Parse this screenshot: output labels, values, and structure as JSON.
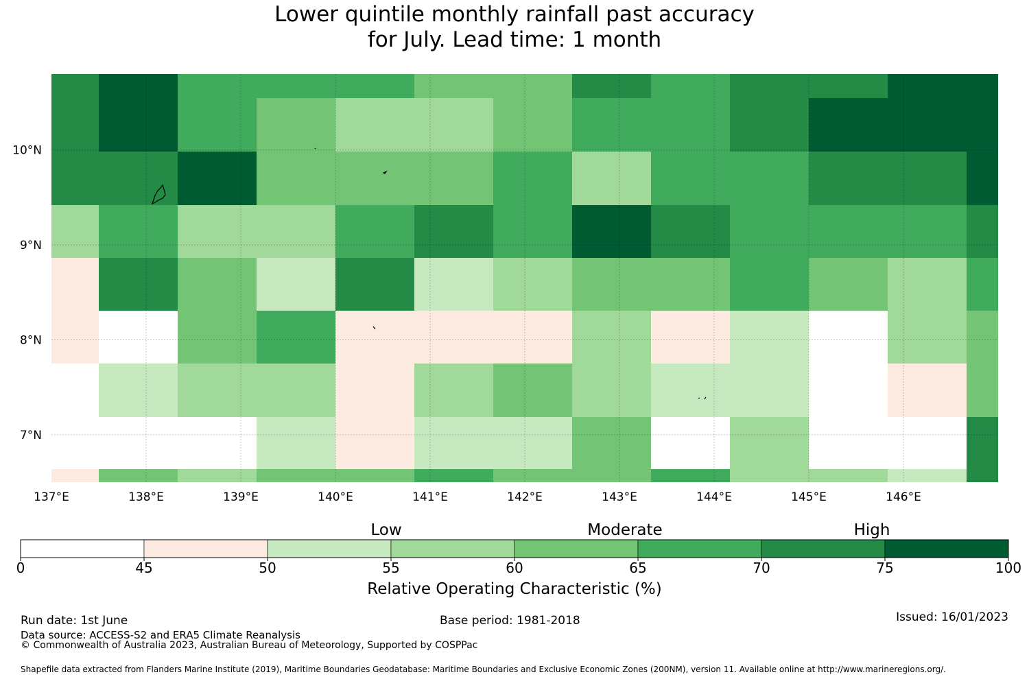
{
  "title": {
    "line1": "Lower quintile monthly rainfall past accuracy",
    "line2": "for July. Lead time: 1 month"
  },
  "map": {
    "lon_labels": [
      "137°E",
      "138°E",
      "139°E",
      "140°E",
      "141°E",
      "142°E",
      "143°E",
      "144°E",
      "145°E",
      "146°E"
    ],
    "lat_labels": [
      "10°N",
      "9°N",
      "8°N",
      "7°N"
    ],
    "lon_range": [
      137.0,
      147.0
    ],
    "lat_range": [
      6.5,
      10.8
    ],
    "cell_lon_edges": [
      137.0,
      137.5,
      138.33,
      139.17,
      140.0,
      140.83,
      141.67,
      142.5,
      143.33,
      144.17,
      145.0,
      145.83,
      146.67,
      147.0
    ],
    "cell_lat_edges": [
      10.8,
      10.55,
      9.98,
      9.42,
      8.86,
      8.31,
      7.75,
      7.19,
      6.64,
      6.5
    ],
    "roc_grid": [
      [
        72,
        77,
        67,
        67,
        67,
        62,
        62,
        72,
        67,
        72,
        72,
        77,
        77
      ],
      [
        72,
        77,
        67,
        62,
        57,
        57,
        62,
        67,
        67,
        72,
        77,
        77,
        77
      ],
      [
        72,
        72,
        77,
        62,
        62,
        62,
        67,
        57,
        67,
        67,
        72,
        72,
        77
      ],
      [
        57,
        67,
        57,
        57,
        67,
        72,
        67,
        77,
        72,
        67,
        67,
        67,
        72
      ],
      [
        47,
        72,
        62,
        52,
        72,
        52,
        57,
        62,
        62,
        67,
        62,
        57,
        67
      ],
      [
        47,
        40,
        62,
        67,
        47,
        47,
        47,
        57,
        47,
        52,
        40,
        57,
        62
      ],
      [
        40,
        52,
        57,
        57,
        47,
        57,
        62,
        57,
        52,
        52,
        40,
        47,
        62
      ],
      [
        40,
        40,
        40,
        52,
        47,
        52,
        52,
        62,
        40,
        57,
        40,
        40,
        72
      ],
      [
        47,
        62,
        57,
        62,
        62,
        67,
        62,
        62,
        67,
        57,
        57,
        52,
        72
      ]
    ]
  },
  "colorbar": {
    "bounds": [
      0,
      45,
      50,
      55,
      60,
      65,
      70,
      75,
      100
    ],
    "tick_labels": [
      "0",
      "45",
      "50",
      "55",
      "60",
      "65",
      "70",
      "75",
      "100"
    ],
    "colors": [
      "#ffffff",
      "#fdebe2",
      "#c7e9c0",
      "#a1d99b",
      "#74c476",
      "#41ab5d",
      "#238b45",
      "#005a32"
    ],
    "category_labels": [
      "Low",
      "Moderate",
      "High"
    ],
    "title": "Relative Operating Characteristic (%)"
  },
  "footer": {
    "run_date": "Run date: 1st June",
    "base_period": "Base period: 1981-2018",
    "issued": "Issued: 16/01/2023",
    "data_source": "Data source: ACCESS-S2 and ERA5 Climate Reanalysis",
    "copyright": "© Commonwealth of Australia 2023, Australian Bureau of Meteorology, Supported by COSPPac",
    "shapefile": "Shapefile data extracted from Flanders Marine Institute (2019), Maritime Boundaries Geodatabase: Maritime Boundaries and Exclusive Economic Zones (200NM), version 11. Available online at http://www.marineregions.org/."
  }
}
